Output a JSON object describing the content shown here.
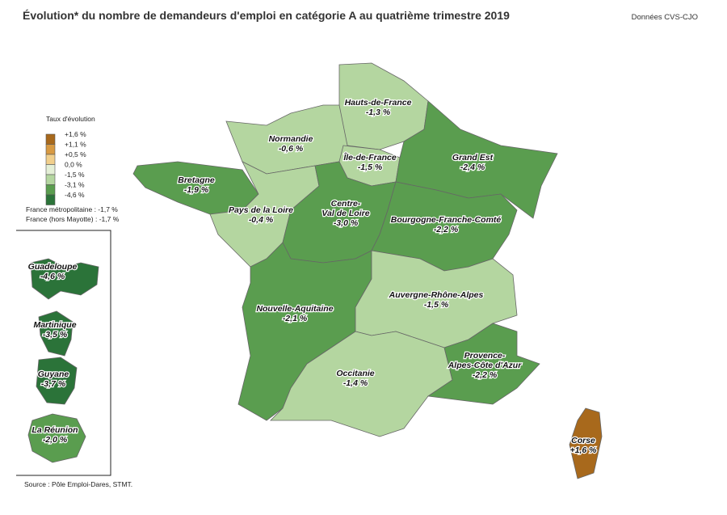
{
  "header": {
    "title": "Évolution* du nombre de demandeurs d'emploi en catégorie A au quatrième trimestre 2019",
    "note": "Données CVS-CJO"
  },
  "legend": {
    "title": "Taux d'évolution",
    "labels": [
      "+1,6 %",
      "+1,1 %",
      "+0,5 %",
      "0,0 %",
      "-1,5 %",
      "-3,1 %",
      "-4,6 %"
    ],
    "colors": [
      "#a8691c",
      "#d89a42",
      "#f1cf8c",
      "#e4efd6",
      "#b4d6a0",
      "#5a9d4f",
      "#2b7339"
    ]
  },
  "totals": [
    "France métropolitaine : -1,7 %",
    "France (hors Mayotte) : -1,7 %"
  ],
  "regions": [
    {
      "lines": [
        "Hauts-de-France"
      ],
      "value": "-1,3 %",
      "color": "#b4d6a0"
    },
    {
      "lines": [
        "Normandie"
      ],
      "value": "-0,6 %",
      "color": "#b4d6a0"
    },
    {
      "lines": [
        "Île-de-France"
      ],
      "value": "-1,5 %",
      "color": "#b4d6a0"
    },
    {
      "lines": [
        "Grand Est"
      ],
      "value": "-2,4 %",
      "color": "#5a9d4f"
    },
    {
      "lines": [
        "Bretagne"
      ],
      "value": "-1,9 %",
      "color": "#5a9d4f"
    },
    {
      "lines": [
        "Pays de la Loire"
      ],
      "value": "-0,4 %",
      "color": "#b4d6a0"
    },
    {
      "lines": [
        "Centre-",
        "Val de Loire"
      ],
      "value": "-3,0 %",
      "color": "#5a9d4f"
    },
    {
      "lines": [
        "Bourgogne-Franche-Comté"
      ],
      "value": "-2,2 %",
      "color": "#5a9d4f"
    },
    {
      "lines": [
        "Nouvelle-Aquitaine"
      ],
      "value": "-2,1 %",
      "color": "#5a9d4f"
    },
    {
      "lines": [
        "Auvergne-Rhône-Alpes"
      ],
      "value": "-1,5 %",
      "color": "#b4d6a0"
    },
    {
      "lines": [
        "Occitanie"
      ],
      "value": "-1,4 %",
      "color": "#b4d6a0"
    },
    {
      "lines": [
        "Provence-",
        "Alpes-Côte d'Azur"
      ],
      "value": "-2,2 %",
      "color": "#5a9d4f"
    },
    {
      "lines": [
        "Corse"
      ],
      "value": "+1,6 %",
      "color": "#a8691c"
    },
    {
      "lines": [
        "Guadeloupe"
      ],
      "value": "-4,6 %",
      "color": "#2b7339"
    },
    {
      "lines": [
        "Martinique"
      ],
      "value": "-3,5 %",
      "color": "#2b7339"
    },
    {
      "lines": [
        "Guyane"
      ],
      "value": "-3,7 %",
      "color": "#2b7339"
    },
    {
      "lines": [
        "La Réunion"
      ],
      "value": "-2,0 %",
      "color": "#5a9d4f"
    }
  ],
  "source": "Source : Pôle Emploi-Dares, STMT."
}
